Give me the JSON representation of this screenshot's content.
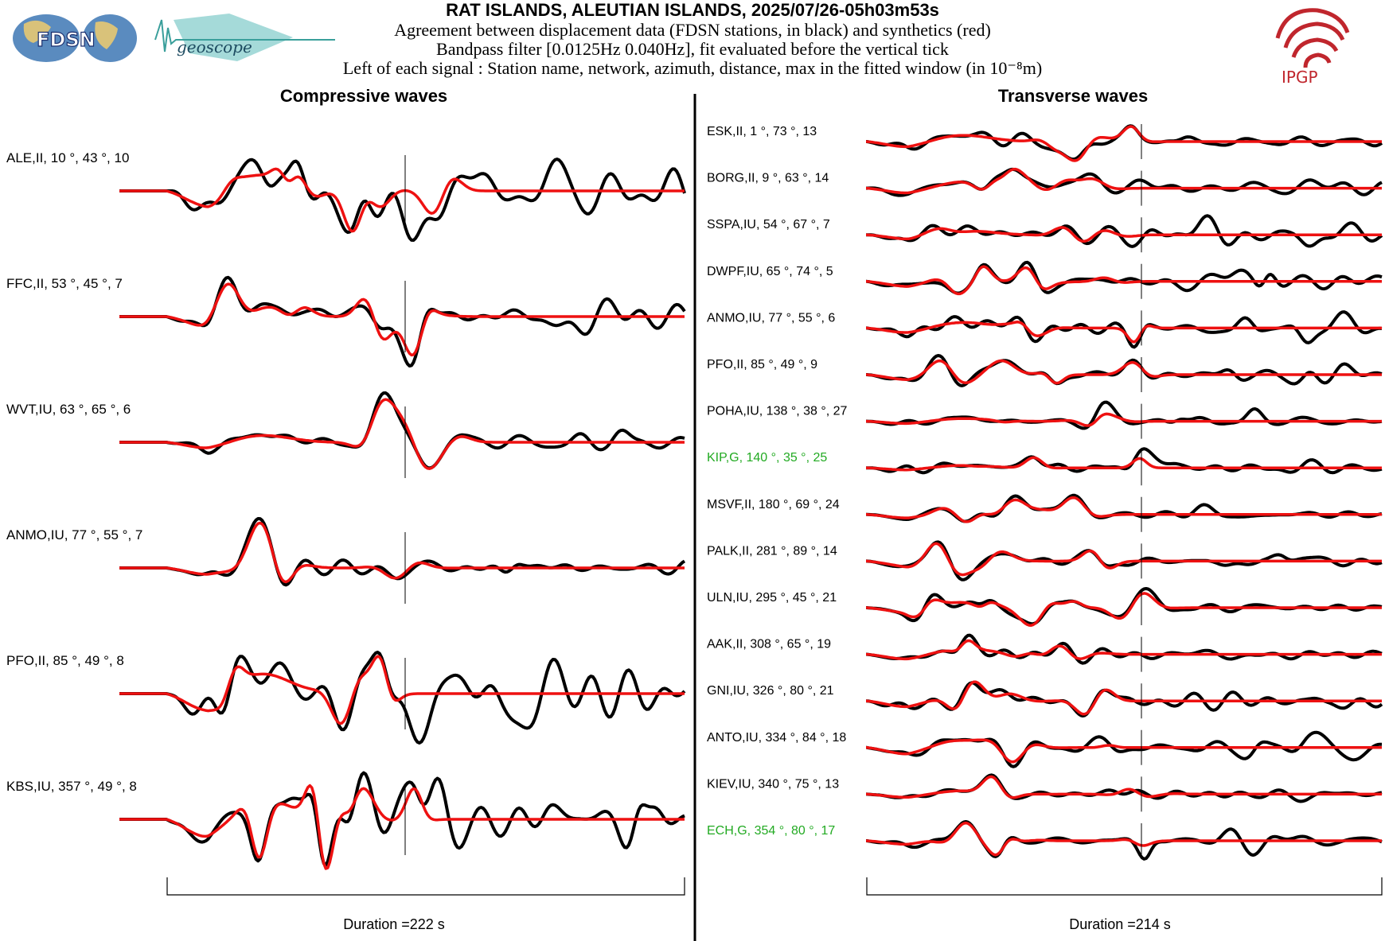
{
  "header": {
    "title": "RAT ISLANDS, ALEUTIAN ISLANDS, 2025/07/26-05h03m53s",
    "line1": "Agreement between displacement data (FDSN stations, in black) and synthetics (red)",
    "line2": "Bandpass filter [0.0125Hz 0.040Hz], fit evaluated before the vertical tick",
    "line3": "Left of each signal : Station name, network, azimuth, distance, max in the fitted window (in 10⁻⁸m)"
  },
  "logos": {
    "fdsn": "FDSN",
    "geoscope": "geoscope",
    "ipgp": "IPGP"
  },
  "colors": {
    "data": "#000000",
    "synthetic": "#ee1111",
    "flagged": "#22aa22",
    "ipgp": "#c0262d"
  },
  "chart_data": [
    {
      "type": "line",
      "title": "Compressive waves",
      "xlabel": "Duration =222 s",
      "series_legend": [
        "data (black)",
        "synthetics (red)"
      ],
      "traces": [
        {
          "label": "ALE,II, 10 °, 43 °, 10",
          "flag": false,
          "seed": 11,
          "data_amp": 1.0,
          "mismatch": 0.45
        },
        {
          "label": "FFC,II, 53 °, 45 °, 7",
          "flag": false,
          "seed": 23,
          "data_amp": 1.0,
          "mismatch": 0.35
        },
        {
          "label": "WVT,IU, 63 °, 65 °, 6",
          "flag": false,
          "seed": 37,
          "data_amp": 1.0,
          "mismatch": 0.25
        },
        {
          "label": "ANMO,IU, 77 °, 55 °, 7",
          "flag": false,
          "seed": 41,
          "data_amp": 1.0,
          "mismatch": 0.3
        },
        {
          "label": "PFO,II, 85 °, 49 °, 8",
          "flag": false,
          "seed": 53,
          "data_amp": 1.0,
          "mismatch": 0.3
        },
        {
          "label": "KBS,IU, 357 °, 49 °, 8",
          "flag": false,
          "seed": 67,
          "data_amp": 1.0,
          "mismatch": 0.4
        }
      ]
    },
    {
      "type": "line",
      "title": "Transverse waves",
      "xlabel": "Duration =214 s",
      "series_legend": [
        "data (black)",
        "synthetics (red)"
      ],
      "traces": [
        {
          "label": "ESK,II, 1 °, 73 °, 13",
          "flag": false,
          "seed": 101,
          "data_amp": 1.0,
          "mismatch": 0.3
        },
        {
          "label": "BORG,II, 9 °, 63 °, 14",
          "flag": false,
          "seed": 103,
          "data_amp": 1.0,
          "mismatch": 0.3
        },
        {
          "label": "SSPA,IU, 54 °, 67 °, 7",
          "flag": false,
          "seed": 107,
          "data_amp": 1.0,
          "mismatch": 0.5
        },
        {
          "label": "DWPF,IU, 65 °, 74 °, 5",
          "flag": false,
          "seed": 109,
          "data_amp": 1.0,
          "mismatch": 0.6
        },
        {
          "label": "ANMO,IU, 77 °, 55 °, 6",
          "flag": false,
          "seed": 113,
          "data_amp": 1.0,
          "mismatch": 0.5
        },
        {
          "label": "PFO,II, 85 °, 49 °, 9",
          "flag": false,
          "seed": 127,
          "data_amp": 1.0,
          "mismatch": 0.4
        },
        {
          "label": "POHA,IU, 138 °, 38 °, 27",
          "flag": false,
          "seed": 131,
          "data_amp": 1.0,
          "mismatch": 0.6
        },
        {
          "label": "KIP,G, 140 °, 35 °, 25",
          "flag": true,
          "seed": 137,
          "data_amp": 1.0,
          "mismatch": 0.9
        },
        {
          "label": "MSVF,II, 180 °, 69 °, 24",
          "flag": false,
          "seed": 139,
          "data_amp": 1.0,
          "mismatch": 0.3
        },
        {
          "label": "PALK,II, 281 °, 89 °, 14",
          "flag": false,
          "seed": 149,
          "data_amp": 1.0,
          "mismatch": 0.2
        },
        {
          "label": "ULN,IU, 295 °, 45 °, 21",
          "flag": false,
          "seed": 151,
          "data_amp": 1.0,
          "mismatch": 0.15
        },
        {
          "label": "AAK,II, 308 °, 65 °, 19",
          "flag": false,
          "seed": 157,
          "data_amp": 1.0,
          "mismatch": 0.2
        },
        {
          "label": "GNI,IU, 326 °, 80 °, 21",
          "flag": false,
          "seed": 163,
          "data_amp": 1.0,
          "mismatch": 0.2
        },
        {
          "label": "ANTO,IU, 334 °, 84 °, 18",
          "flag": false,
          "seed": 167,
          "data_amp": 1.0,
          "mismatch": 0.3
        },
        {
          "label": "KIEV,IU, 340 °, 75 °, 13",
          "flag": false,
          "seed": 173,
          "data_amp": 1.0,
          "mismatch": 0.25
        },
        {
          "label": "ECH,G, 354 °, 80 °, 17",
          "flag": true,
          "seed": 179,
          "data_amp": 1.0,
          "mismatch": 0.7
        }
      ]
    }
  ]
}
